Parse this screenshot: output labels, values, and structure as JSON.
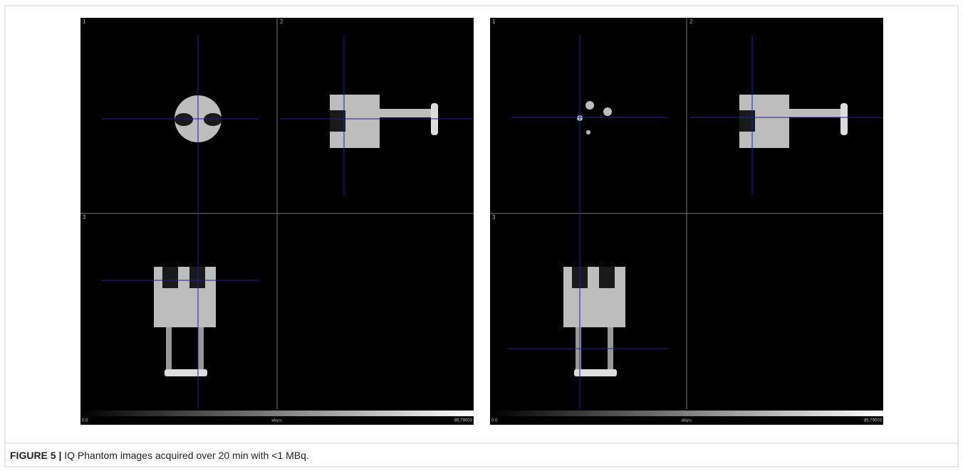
{
  "panels": [
    {
      "viewports": [
        "1",
        "2",
        "3"
      ],
      "colorbar": {
        "min": "0.0",
        "unit": "kBq/cc",
        "max": "85.79003"
      }
    },
    {
      "viewports": [
        "1",
        "2",
        "3"
      ],
      "colorbar": {
        "min": "0.0",
        "unit": "kBq/cc",
        "max": "85.79003"
      }
    }
  ],
  "caption": {
    "label": "FIGURE 5 |",
    "text": "IQ Phantom images acquired over 20 min with <1 MBq."
  }
}
